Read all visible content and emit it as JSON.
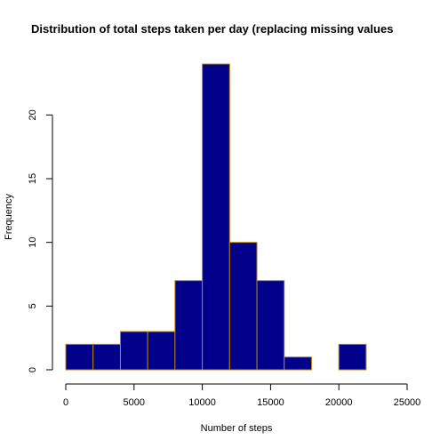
{
  "chart_data": {
    "type": "bar",
    "title": "Distribution of total steps taken per day (replacing missing values",
    "xlabel": "Number of steps",
    "ylabel": "Frequency",
    "bin_edges": [
      0,
      2000,
      4000,
      6000,
      8000,
      10000,
      12000,
      14000,
      16000,
      18000,
      20000,
      22000
    ],
    "values": [
      2,
      2,
      3,
      3,
      7,
      24,
      10,
      7,
      1,
      0,
      2
    ],
    "xlim": [
      0,
      25000
    ],
    "ylim": [
      0,
      24
    ],
    "x_ticks": [
      "0",
      "5000",
      "10000",
      "15000",
      "20000",
      "25000"
    ],
    "y_ticks": [
      "0",
      "5",
      "10",
      "15",
      "20"
    ],
    "bar_fill": "#00008B",
    "bar_border": "#B8860B",
    "grid": false
  }
}
